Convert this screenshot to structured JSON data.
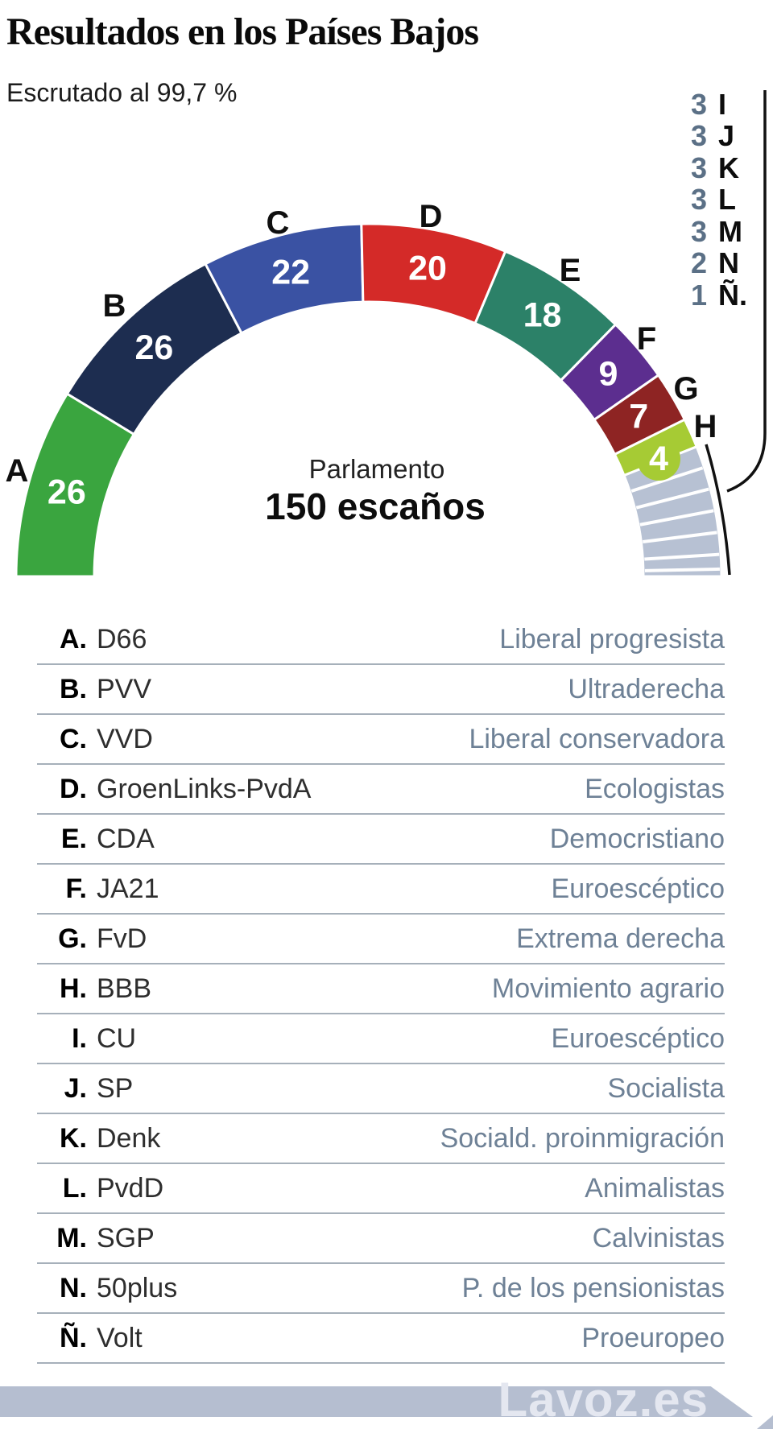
{
  "header": {
    "title": "Resultados en los Países Bajos",
    "subtitle": "Escrutado al 99,7 %"
  },
  "chart_data": {
    "type": "parliament-halfdonut",
    "total_seats": 150,
    "center_label": "Parlamento",
    "center_value": "150 escaños",
    "group_color": "#b7c1d3",
    "parties": [
      {
        "letter": "A",
        "name": "D66",
        "ideology": "Liberal progresista",
        "seats": 26,
        "color": "#3aa53f"
      },
      {
        "letter": "B",
        "name": "PVV",
        "ideology": "Ultraderecha",
        "seats": 26,
        "color": "#1d2d50"
      },
      {
        "letter": "C",
        "name": "VVD",
        "ideology": "Liberal conservadora",
        "seats": 22,
        "color": "#3a52a3"
      },
      {
        "letter": "D",
        "name": "GroenLinks-PvdA",
        "ideology": "Ecologistas",
        "seats": 20,
        "color": "#d42a28"
      },
      {
        "letter": "E",
        "name": "CDA",
        "ideology": "Democristiano",
        "seats": 18,
        "color": "#2c8168"
      },
      {
        "letter": "F",
        "name": "JA21",
        "ideology": "Euroescéptico",
        "seats": 9,
        "color": "#5c2e8f"
      },
      {
        "letter": "G",
        "name": "FvD",
        "ideology": "Extrema derecha",
        "seats": 7,
        "color": "#8e2423"
      },
      {
        "letter": "H",
        "name": "BBB",
        "ideology": "Movimiento agrario",
        "seats": 4,
        "color": "#a6cb34"
      },
      {
        "letter": "I",
        "name": "CU",
        "ideology": "Euroescéptico",
        "seats": 3,
        "color": "#b7c1d3",
        "grouped": true
      },
      {
        "letter": "J",
        "name": "SP",
        "ideology": "Socialista",
        "seats": 3,
        "color": "#b7c1d3",
        "grouped": true
      },
      {
        "letter": "K",
        "name": "Denk",
        "ideology": "Sociald. proinmigración",
        "seats": 3,
        "color": "#b7c1d3",
        "grouped": true
      },
      {
        "letter": "L",
        "name": "PvdD",
        "ideology": "Animalistas",
        "seats": 3,
        "color": "#b7c1d3",
        "grouped": true
      },
      {
        "letter": "M",
        "name": "SGP",
        "ideology": "Calvinistas",
        "seats": 3,
        "color": "#b7c1d3",
        "grouped": true
      },
      {
        "letter": "N",
        "name": "50plus",
        "ideology": "P. de los pensionistas",
        "seats": 2,
        "color": "#b7c1d3",
        "grouped": true
      },
      {
        "letter": "Ñ",
        "name": "Volt",
        "ideology": "Proeuropeo",
        "seats": 1,
        "color": "#b7c1d3",
        "grouped": true
      }
    ]
  },
  "side_list": [
    {
      "seats": "3",
      "letter": "I"
    },
    {
      "seats": "3",
      "letter": "J"
    },
    {
      "seats": "3",
      "letter": "K"
    },
    {
      "seats": "3",
      "letter": "L"
    },
    {
      "seats": "3",
      "letter": "M"
    },
    {
      "seats": "2",
      "letter": "N"
    },
    {
      "seats": "1",
      "letter": "Ñ."
    }
  ],
  "colors": {
    "seat_number_text": "#ffffff",
    "segment_letter_text": "#0f0f0f",
    "side_seats_text": "#5b7086",
    "ideology_text": "#6e8196",
    "divider": "#a6b0ba",
    "bracket_line": "#111111",
    "watermark_bar": "#b5bed0"
  },
  "watermark": {
    "text": "Lavoz.es"
  }
}
